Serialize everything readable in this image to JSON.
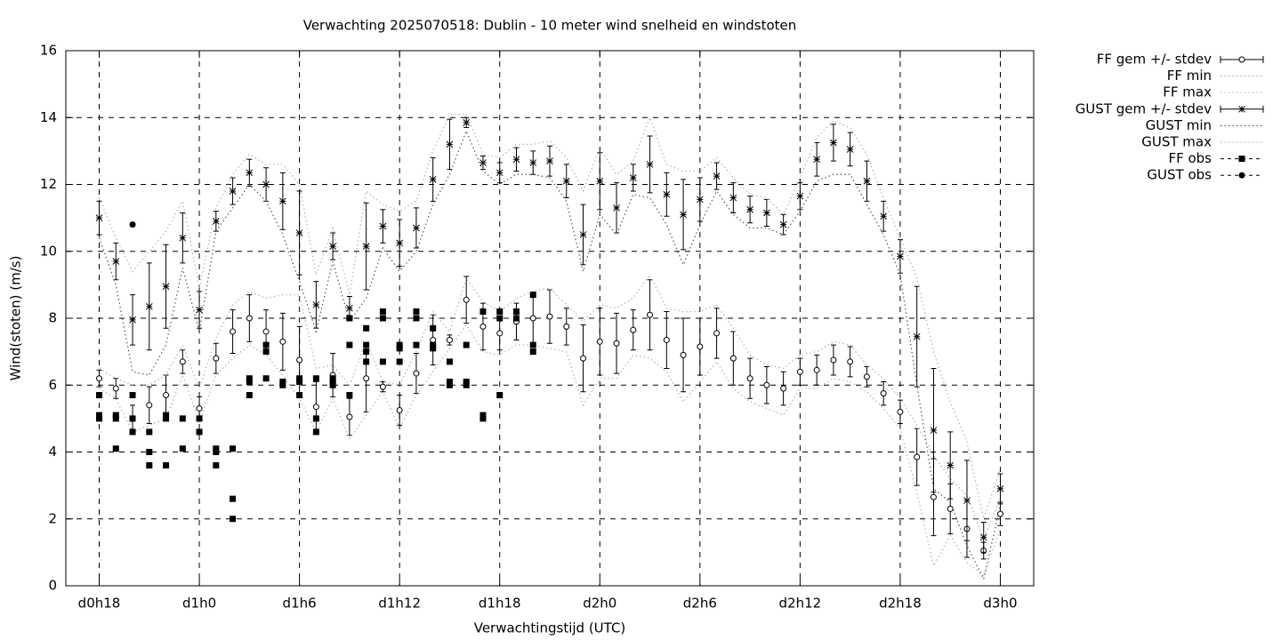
{
  "chart_data": {
    "type": "errorbar",
    "title": "Verwachting 2025070518: Dublin - 10 meter wind snelheid en windstoten",
    "xlabel": "Verwachtingstijd (UTC)",
    "ylabel": "Wind(stoten) (m/s)",
    "xlim": [
      16,
      74
    ],
    "ylim": [
      0,
      16
    ],
    "xticks": [
      {
        "value": 18,
        "label": "d0h18"
      },
      {
        "value": 24,
        "label": "d1h0"
      },
      {
        "value": 30,
        "label": "d1h6"
      },
      {
        "value": 36,
        "label": "d1h12"
      },
      {
        "value": 42,
        "label": "d1h18"
      },
      {
        "value": 48,
        "label": "d2h0"
      },
      {
        "value": 54,
        "label": "d2h6"
      },
      {
        "value": 60,
        "label": "d2h12"
      },
      {
        "value": 66,
        "label": "d2h18"
      },
      {
        "value": 72,
        "label": "d3h0"
      }
    ],
    "yticks": [
      0,
      2,
      4,
      6,
      8,
      10,
      12,
      14,
      16
    ],
    "grid": true,
    "legend": "outside-top-right",
    "x": [
      18,
      19,
      20,
      21,
      22,
      23,
      24,
      25,
      26,
      27,
      28,
      29,
      30,
      31,
      32,
      33,
      34,
      35,
      36,
      37,
      38,
      39,
      40,
      41,
      42,
      43,
      44,
      45,
      46,
      47,
      48,
      49,
      50,
      51,
      52,
      53,
      54,
      55,
      56,
      57,
      58,
      59,
      60,
      61,
      62,
      63,
      64,
      65,
      66,
      67,
      68,
      69,
      70,
      71,
      72
    ],
    "series": [
      {
        "name": "FF gem +/- stdev",
        "color": "#000000",
        "marker": "circle",
        "values": [
          6.2,
          5.9,
          5.0,
          5.4,
          5.7,
          6.7,
          5.3,
          6.8,
          7.6,
          8.0,
          7.6,
          7.3,
          6.75,
          5.35,
          6.3,
          5.05,
          6.2,
          5.95,
          5.25,
          6.35,
          7.35,
          7.35,
          8.55,
          7.75,
          7.55,
          7.9,
          8.0,
          8.05,
          7.75,
          6.8,
          7.3,
          7.25,
          7.65,
          8.1,
          7.35,
          6.9,
          7.15,
          7.55,
          6.8,
          6.2,
          6.0,
          5.9,
          6.4,
          6.45,
          6.75,
          6.7,
          6.25,
          5.75,
          5.2,
          3.85,
          2.65,
          2.3,
          1.7,
          1.05,
          2.15
        ],
        "errors": [
          0.25,
          0.3,
          0.4,
          0.55,
          0.6,
          0.35,
          0.35,
          0.45,
          0.65,
          0.7,
          0.65,
          0.85,
          1.0,
          0.75,
          0.65,
          0.55,
          1.0,
          0.15,
          0.45,
          0.6,
          0.75,
          0.15,
          0.7,
          0.7,
          0.5,
          0.55,
          0.75,
          0.8,
          0.55,
          1.0,
          1.0,
          0.9,
          0.6,
          1.05,
          0.85,
          1.1,
          0.85,
          0.75,
          0.8,
          0.6,
          0.55,
          0.5,
          0.4,
          0.45,
          0.45,
          0.45,
          0.3,
          0.35,
          0.35,
          0.85,
          1.15,
          0.75,
          0.85,
          0.25,
          0.35
        ]
      },
      {
        "name": "FF min",
        "color": "#b0b0b0",
        "marker": "line",
        "values": [
          5.9,
          5.6,
          4.6,
          4.8,
          5.0,
          6.3,
          4.9,
          6.3,
          6.8,
          7.2,
          6.9,
          6.3,
          5.6,
          4.6,
          5.6,
          4.4,
          5.1,
          5.8,
          4.7,
          5.7,
          6.4,
          7.1,
          7.8,
          7.0,
          6.9,
          7.2,
          7.2,
          7.1,
          7.0,
          5.4,
          6.2,
          6.2,
          6.9,
          6.8,
          6.4,
          5.5,
          6.1,
          6.7,
          5.9,
          5.5,
          5.3,
          5.1,
          5.9,
          5.9,
          6.2,
          6.1,
          5.8,
          5.3,
          4.7,
          2.8,
          0.6,
          1.5,
          0.7,
          0.3,
          1.7
        ]
      },
      {
        "name": "FF max",
        "color": "#b0b0b0",
        "marker": "line",
        "values": [
          6.5,
          6.2,
          6.0,
          6.0,
          6.3,
          7.2,
          5.9,
          7.4,
          8.4,
          8.8,
          8.6,
          8.7,
          8.7,
          6.5,
          6.6,
          6.0,
          7.3,
          6.1,
          6.0,
          7.0,
          8.2,
          7.6,
          9.2,
          8.5,
          8.2,
          8.6,
          8.8,
          8.9,
          8.4,
          7.9,
          8.4,
          8.3,
          8.6,
          9.3,
          8.3,
          8.2,
          8.2,
          8.4,
          7.7,
          6.9,
          6.6,
          6.5,
          6.9,
          7.0,
          7.3,
          7.2,
          6.6,
          6.2,
          5.6,
          4.8,
          3.9,
          3.2,
          2.7,
          1.4,
          2.6
        ]
      },
      {
        "name": "GUST gem +/- stdev",
        "color": "#000000",
        "marker": "star",
        "values": [
          11.0,
          9.7,
          7.95,
          8.35,
          8.95,
          10.4,
          8.25,
          10.9,
          11.8,
          12.35,
          12.0,
          11.5,
          10.55,
          8.4,
          10.15,
          8.3,
          10.15,
          10.75,
          10.25,
          10.7,
          12.15,
          13.2,
          13.85,
          12.65,
          12.35,
          12.75,
          12.65,
          12.7,
          12.1,
          10.5,
          12.1,
          11.3,
          12.2,
          12.6,
          11.7,
          11.1,
          11.55,
          12.25,
          11.6,
          11.25,
          11.15,
          10.8,
          11.65,
          12.75,
          13.25,
          13.05,
          12.1,
          11.05,
          9.85,
          7.45,
          4.65,
          3.6,
          2.55,
          1.45,
          2.9
        ],
        "errors": [
          0.5,
          0.55,
          0.75,
          1.3,
          1.25,
          0.75,
          0.55,
          0.3,
          0.4,
          0.4,
          0.5,
          0.85,
          1.25,
          0.7,
          0.4,
          0.35,
          1.3,
          0.5,
          0.7,
          0.6,
          0.65,
          0.75,
          0.15,
          0.2,
          0.3,
          0.35,
          0.35,
          0.45,
          0.5,
          0.9,
          0.85,
          0.75,
          0.4,
          0.85,
          0.65,
          1.05,
          0.65,
          0.4,
          0.45,
          0.4,
          0.4,
          0.3,
          0.4,
          0.5,
          0.55,
          0.5,
          0.6,
          0.45,
          0.5,
          1.5,
          1.85,
          1.0,
          1.2,
          0.45,
          0.45
        ]
      },
      {
        "name": "GUST min",
        "color": "#555555",
        "marker": "line",
        "values": [
          10.4,
          9.0,
          6.4,
          6.3,
          7.2,
          9.5,
          7.6,
          10.6,
          11.3,
          12.0,
          11.5,
          10.5,
          9.1,
          7.6,
          9.7,
          7.9,
          8.6,
          10.1,
          9.4,
          10.0,
          11.4,
          12.3,
          13.6,
          12.4,
          12.0,
          12.3,
          12.3,
          12.2,
          11.5,
          9.4,
          11.1,
          10.5,
          11.7,
          11.6,
          10.8,
          9.6,
          10.8,
          11.8,
          11.1,
          10.7,
          10.7,
          10.5,
          11.2,
          12.1,
          12.3,
          12.3,
          11.4,
          10.5,
          9.3,
          6.0,
          2.9,
          2.5,
          1.2,
          0.2,
          2.4
        ]
      },
      {
        "name": "GUST max",
        "color": "#b0b0b0",
        "marker": "line",
        "values": [
          11.6,
          10.4,
          9.4,
          10.0,
          10.6,
          11.5,
          8.9,
          11.3,
          12.3,
          12.9,
          12.6,
          12.6,
          12.0,
          9.3,
          10.7,
          8.7,
          11.8,
          11.4,
          11.2,
          11.5,
          13.0,
          14.1,
          14.1,
          12.9,
          12.8,
          13.2,
          13.2,
          13.3,
          12.8,
          11.8,
          13.1,
          12.3,
          12.7,
          14.0,
          12.6,
          12.4,
          12.4,
          12.8,
          12.2,
          11.7,
          11.6,
          11.1,
          12.2,
          13.4,
          13.9,
          13.7,
          12.9,
          11.6,
          10.4,
          9.2,
          7.0,
          5.5,
          4.3,
          2.0,
          3.5
        ]
      },
      {
        "name": "FF obs",
        "color": "#000000",
        "marker": "square",
        "x": [
          18,
          18,
          18,
          19,
          19,
          19,
          20,
          20,
          20,
          21,
          21,
          21,
          22,
          22,
          22,
          23,
          23,
          24,
          24,
          25,
          25,
          25,
          26,
          26,
          26,
          27,
          27,
          27,
          28,
          28,
          28,
          29,
          29,
          30,
          30,
          30,
          31,
          31,
          31,
          32,
          32,
          32,
          33,
          33,
          33,
          34,
          34,
          34,
          34,
          35,
          35,
          35,
          36,
          36,
          36,
          37,
          37,
          37,
          38,
          38,
          38,
          39,
          39,
          39,
          40,
          40,
          40,
          41,
          41,
          41,
          42,
          42,
          42,
          43,
          43,
          44,
          44,
          44
        ],
        "values": [
          5.7,
          5.1,
          5.0,
          5.1,
          5.0,
          4.1,
          5.7,
          5.0,
          4.6,
          4.6,
          4.0,
          3.6,
          5.1,
          5.0,
          3.6,
          5.0,
          4.1,
          5.0,
          4.6,
          4.1,
          4.0,
          3.6,
          4.1,
          2.6,
          2.0,
          6.2,
          6.1,
          5.7,
          7.2,
          7.0,
          6.2,
          6.1,
          6.0,
          6.2,
          6.1,
          5.7,
          6.2,
          5.0,
          4.6,
          6.2,
          6.1,
          6.0,
          8.0,
          7.2,
          5.7,
          7.7,
          7.2,
          7.0,
          6.7,
          8.2,
          8.0,
          6.7,
          7.2,
          7.1,
          6.7,
          8.2,
          8.0,
          7.2,
          7.7,
          7.2,
          7.1,
          6.7,
          6.1,
          6.0,
          7.2,
          6.1,
          6.0,
          8.2,
          5.1,
          5.0,
          8.2,
          8.0,
          5.7,
          8.2,
          8.0,
          8.7,
          7.2,
          7.0
        ]
      },
      {
        "name": "GUST obs",
        "color": "#000000",
        "marker": "dot",
        "x": [
          20
        ],
        "values": [
          10.8
        ]
      }
    ]
  }
}
